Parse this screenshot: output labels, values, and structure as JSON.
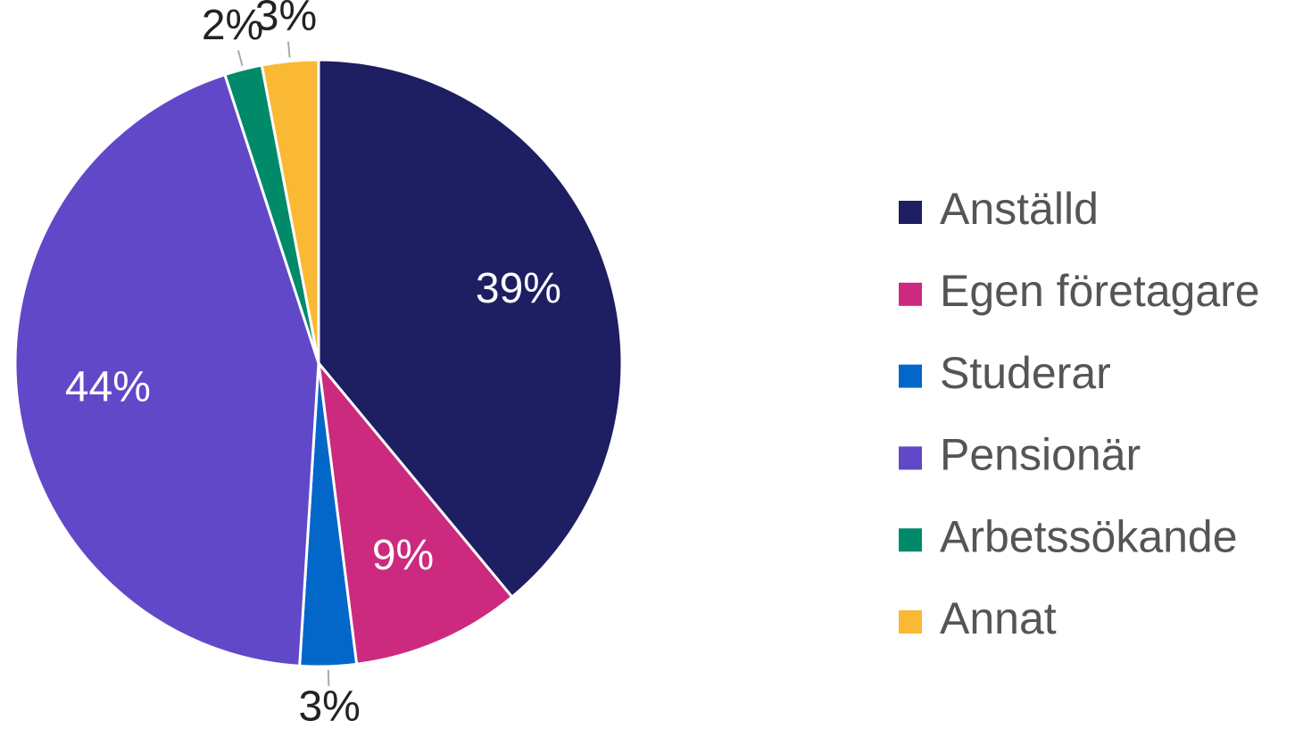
{
  "chart_data": {
    "type": "pie",
    "categories": [
      "Anställd",
      "Egen företagare",
      "Studerar",
      "Pensionär",
      "Arbetssökande",
      "Annat"
    ],
    "values": [
      39,
      9,
      3,
      44,
      2,
      3
    ],
    "value_labels": [
      "39%",
      "9%",
      "3%",
      "44%",
      "2%",
      "3%"
    ],
    "colors": [
      "#1e1e62",
      "#cc2a7f",
      "#0366c9",
      "#6148c8",
      "#008a6a",
      "#f9b935"
    ],
    "legend": "right"
  }
}
